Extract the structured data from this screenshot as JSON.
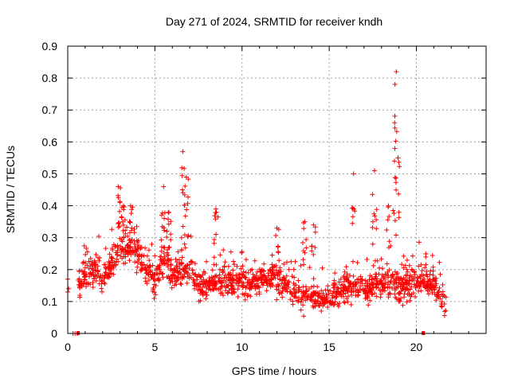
{
  "chart_data": {
    "type": "scatter",
    "title": "Day 271 of 2024, SRMTID for receiver kndh",
    "xlabel": "GPS time / hours",
    "ylabel": "SRMTID / TECUs",
    "xlim": [
      0,
      24
    ],
    "ylim": [
      0,
      0.9
    ],
    "xticks": [
      0,
      5,
      10,
      15,
      20
    ],
    "yticks": [
      0,
      0.1,
      0.2,
      0.3,
      0.4,
      0.5,
      0.6,
      0.7,
      0.8,
      0.9
    ],
    "xtick_labels": [
      "0",
      "5",
      "10",
      "15",
      "20"
    ],
    "ytick_labels": [
      "0",
      "0.1",
      "0.2",
      "0.3",
      "0.4",
      "0.5",
      "0.6",
      "0.7",
      "0.8",
      "0.9"
    ],
    "grid": true,
    "marker": "+",
    "series_color": "#ff0000",
    "zero_markers_x": [
      0.6,
      20.4
    ],
    "envelope": [
      [
        0.0,
        0.14
      ],
      [
        0.5,
        0.15
      ],
      [
        0.7,
        0.16
      ],
      [
        1.0,
        0.2
      ],
      [
        1.3,
        0.2
      ],
      [
        1.6,
        0.2
      ],
      [
        2.0,
        0.17
      ],
      [
        2.5,
        0.22
      ],
      [
        3.0,
        0.26
      ],
      [
        3.5,
        0.27
      ],
      [
        4.0,
        0.25
      ],
      [
        4.5,
        0.2
      ],
      [
        5.0,
        0.16
      ],
      [
        5.5,
        0.24
      ],
      [
        6.0,
        0.18
      ],
      [
        6.5,
        0.2
      ],
      [
        7.0,
        0.2
      ],
      [
        7.5,
        0.14
      ],
      [
        8.0,
        0.14
      ],
      [
        8.5,
        0.17
      ],
      [
        9.0,
        0.17
      ],
      [
        9.5,
        0.16
      ],
      [
        10.0,
        0.16
      ],
      [
        10.5,
        0.16
      ],
      [
        11.0,
        0.17
      ],
      [
        11.5,
        0.18
      ],
      [
        12.0,
        0.17
      ],
      [
        12.5,
        0.15
      ],
      [
        13.0,
        0.13
      ],
      [
        13.5,
        0.12
      ],
      [
        14.0,
        0.12
      ],
      [
        14.5,
        0.11
      ],
      [
        15.0,
        0.11
      ],
      [
        15.5,
        0.13
      ],
      [
        16.0,
        0.15
      ],
      [
        16.5,
        0.15
      ],
      [
        17.0,
        0.14
      ],
      [
        17.5,
        0.15
      ],
      [
        18.0,
        0.15
      ],
      [
        18.5,
        0.16
      ],
      [
        19.0,
        0.14
      ],
      [
        19.5,
        0.15
      ],
      [
        20.0,
        0.16
      ],
      [
        20.5,
        0.16
      ],
      [
        21.0,
        0.15
      ],
      [
        21.5,
        0.12
      ],
      [
        21.7,
        0.1
      ]
    ],
    "spikes": [
      {
        "x": 2.9,
        "y": 0.46
      },
      {
        "x": 3.2,
        "y": 0.4
      },
      {
        "x": 3.6,
        "y": 0.4
      },
      {
        "x": 5.5,
        "y": 0.46
      },
      {
        "x": 5.8,
        "y": 0.38
      },
      {
        "x": 6.6,
        "y": 0.57
      },
      {
        "x": 6.8,
        "y": 0.49
      },
      {
        "x": 8.5,
        "y": 0.39
      },
      {
        "x": 12.0,
        "y": 0.33
      },
      {
        "x": 13.6,
        "y": 0.35
      },
      {
        "x": 14.1,
        "y": 0.34
      },
      {
        "x": 16.4,
        "y": 0.5
      },
      {
        "x": 17.6,
        "y": 0.51
      },
      {
        "x": 18.4,
        "y": 0.4
      },
      {
        "x": 18.75,
        "y": 0.66
      },
      {
        "x": 18.85,
        "y": 0.82
      },
      {
        "x": 18.95,
        "y": 0.55
      }
    ]
  }
}
